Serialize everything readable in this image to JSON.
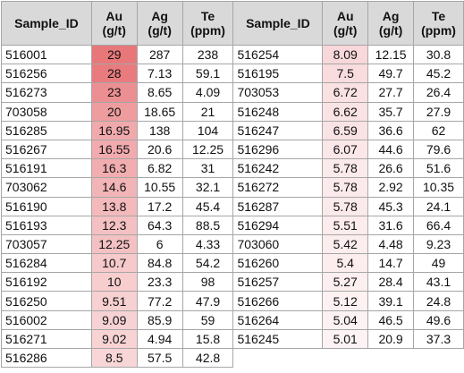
{
  "table": {
    "headers": [
      [
        "Sample_ID"
      ],
      [
        "Au",
        "(g/t)"
      ],
      [
        "Ag",
        "(g/t)"
      ],
      [
        "Te",
        "(ppm)"
      ],
      [
        "Sample_ID"
      ],
      [
        "Au",
        "(g/t)"
      ],
      [
        "Ag",
        "(g/t)"
      ],
      [
        "Te",
        "(ppm)"
      ]
    ],
    "heat_colors": {
      "max": "#e8777a",
      "min": "#fdf3f4"
    },
    "heat_range": [
      5.01,
      29
    ],
    "rows": [
      [
        "516001",
        "29",
        "287",
        "238",
        "516254",
        "8.09",
        "12.15",
        "30.8"
      ],
      [
        "516256",
        "28",
        "7.13",
        "59.1",
        "516195",
        "7.5",
        "49.7",
        "45.2"
      ],
      [
        "516273",
        "23",
        "8.65",
        "4.09",
        "703053",
        "6.72",
        "27.7",
        "26.4"
      ],
      [
        "703058",
        "20",
        "18.65",
        "21",
        "516248",
        "6.62",
        "35.7",
        "27.9"
      ],
      [
        "516285",
        "16.95",
        "138",
        "104",
        "516247",
        "6.59",
        "36.6",
        "62"
      ],
      [
        "516267",
        "16.55",
        "20.6",
        "12.25",
        "516296",
        "6.07",
        "44.6",
        "79.6"
      ],
      [
        "516191",
        "16.3",
        "6.82",
        "31",
        "516242",
        "5.78",
        "26.6",
        "51.6"
      ],
      [
        "703062",
        "14.6",
        "10.55",
        "32.1",
        "516272",
        "5.78",
        "2.92",
        "10.35"
      ],
      [
        "516190",
        "13.8",
        "17.2",
        "45.4",
        "516287",
        "5.78",
        "45.3",
        "24.1"
      ],
      [
        "516193",
        "12.3",
        "64.3",
        "88.5",
        "516294",
        "5.51",
        "31.6",
        "66.4"
      ],
      [
        "703057",
        "12.25",
        "6",
        "4.33",
        "703060",
        "5.42",
        "4.48",
        "9.23"
      ],
      [
        "516284",
        "10.7",
        "84.8",
        "54.2",
        "516260",
        "5.4",
        "14.7",
        "49"
      ],
      [
        "516192",
        "10",
        "23.3",
        "98",
        "516257",
        "5.27",
        "28.4",
        "43.1"
      ],
      [
        "516250",
        "9.51",
        "77.2",
        "47.9",
        "516266",
        "5.12",
        "39.1",
        "24.8"
      ],
      [
        "516002",
        "9.09",
        "85.9",
        "59",
        "516264",
        "5.04",
        "46.5",
        "49.6"
      ],
      [
        "516271",
        "9.02",
        "4.94",
        "15.8",
        "516245",
        "5.01",
        "20.9",
        "37.3"
      ],
      [
        "516286",
        "8.5",
        "57.5",
        "42.8",
        "",
        "",
        "",
        ""
      ]
    ]
  }
}
